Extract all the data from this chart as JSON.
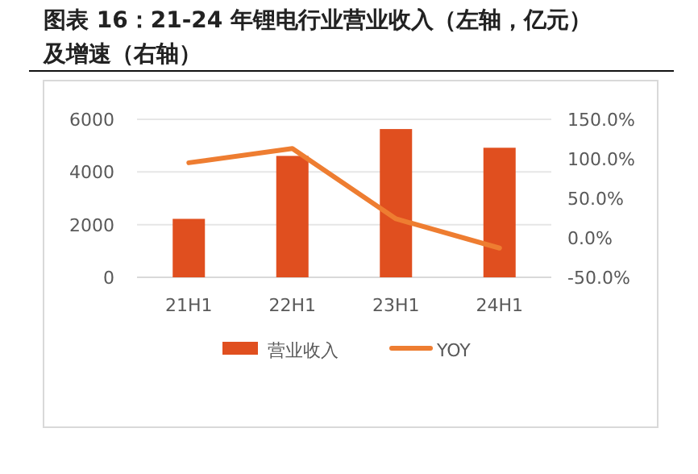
{
  "chart_data": {
    "type": "bar",
    "title": "图表 16：21-24 年锂电行业营业收入（左轴，亿元）及增速（右轴）",
    "categories": [
      "21H1",
      "22H1",
      "23H1",
      "24H1"
    ],
    "series": [
      {
        "name": "营业收入",
        "color": "#e04f1f",
        "values": [
          2220,
          4610,
          5630,
          4920
        ]
      },
      {
        "name": "YOY",
        "type": "line",
        "axis": "y2",
        "color": "#ee7d31",
        "values": [
          95,
          113,
          24,
          -13
        ]
      }
    ],
    "ylim": [
      0,
      6000
    ],
    "yticks": [
      0,
      2000,
      4000,
      6000
    ],
    "y2lim": [
      -50,
      150
    ],
    "y2ticks": [
      {
        "value": -50,
        "label": "-50.0%"
      },
      {
        "value": 0,
        "label": "0.0%"
      },
      {
        "value": 50,
        "label": "50.0%"
      },
      {
        "value": 100,
        "label": "100.0%"
      },
      {
        "value": 150,
        "label": "150.0%"
      }
    ],
    "grid": "y",
    "legend": "bottom",
    "marker": "none",
    "line_style": "solid"
  }
}
